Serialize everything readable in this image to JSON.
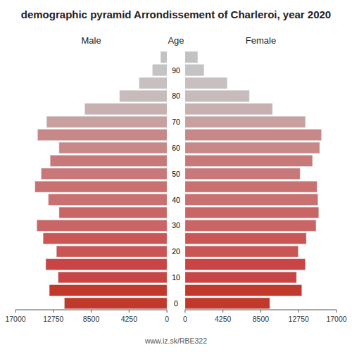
{
  "chart_data": {
    "type": "bar",
    "orientation": "horizontal",
    "title": "demographic pyramid Arrondissement of Charleroi, year 2020",
    "y_label": "Age",
    "annotations": [
      "www.iz.sk/RBE322"
    ],
    "categories": [
      "0",
      null,
      "10",
      null,
      "20",
      null,
      "30",
      null,
      "40",
      null,
      "50",
      null,
      "60",
      null,
      "70",
      null,
      "80",
      null,
      "90",
      null
    ],
    "series": [
      {
        "name": "Male",
        "colors": [
          "#c0392b",
          "#c0392b",
          "#c94545",
          "#c94545",
          "#c95555",
          "#c95555",
          "#c96565",
          "#c96565",
          "#c97070",
          "#c97070",
          "#c87878",
          "#c87878",
          "#c88888",
          "#c88888",
          "#c8a0a0",
          "#c8b0b0",
          "#c8bbbb",
          "#c8c0c0",
          "#c5c3c3",
          "#c3c2c2"
        ],
        "values": [
          11500,
          13200,
          12200,
          13600,
          12400,
          13900,
          14600,
          12100,
          13300,
          14800,
          14100,
          13100,
          12100,
          14500,
          13500,
          9200,
          5300,
          3100,
          1600,
          700
        ]
      },
      {
        "name": "Female",
        "colors": [
          "#c0392b",
          "#c0392b",
          "#c94545",
          "#c94545",
          "#c95555",
          "#c95555",
          "#c96565",
          "#c96565",
          "#c97070",
          "#c97070",
          "#c87878",
          "#c87878",
          "#c88888",
          "#c88888",
          "#c8a0a0",
          "#c8b0b0",
          "#c8bbbb",
          "#c8c0c0",
          "#c5c3c3",
          "#c3c2c2"
        ],
        "values": [
          9500,
          13100,
          12500,
          13500,
          12700,
          13600,
          14700,
          15000,
          14900,
          14800,
          12900,
          14300,
          15100,
          15300,
          13500,
          9800,
          7200,
          4700,
          2100,
          1400
        ]
      }
    ],
    "xlim": [
      0,
      17000
    ],
    "xticks": [
      0,
      4250,
      8500,
      12750,
      17000
    ],
    "grid": false
  }
}
